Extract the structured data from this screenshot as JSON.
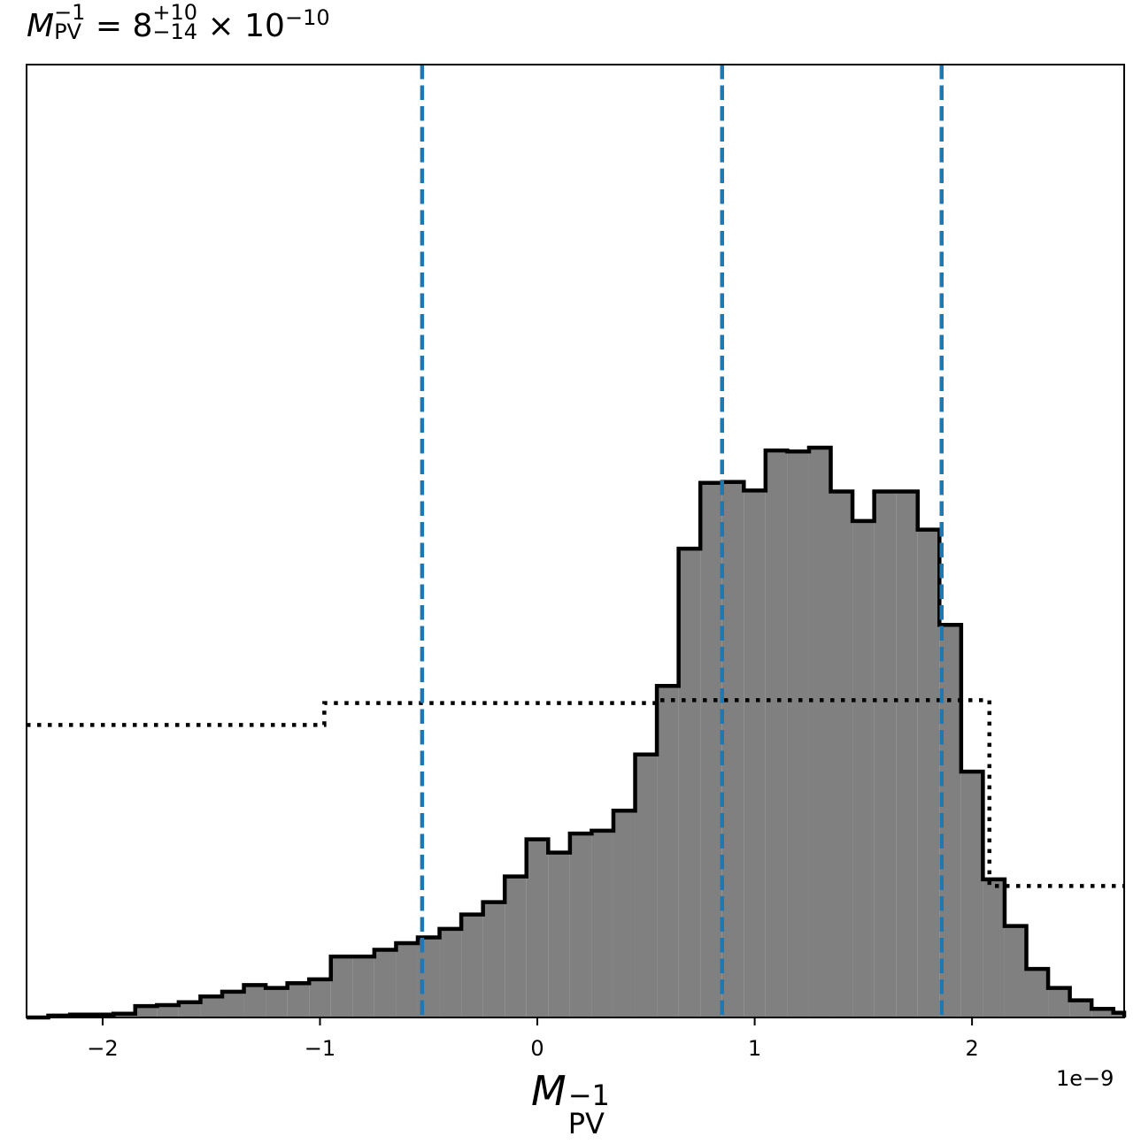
{
  "title": {
    "symbol": "M",
    "symbol_sup": "−1",
    "symbol_sub": "PV",
    "equals": "= 8",
    "value_sup": "+10",
    "value_sub": "−14",
    "times": "× 10",
    "exp": "−10"
  },
  "xlabel": {
    "symbol": "M",
    "sup": "−1",
    "sub": "PV"
  },
  "offset_text": "1e−9",
  "chart_data": {
    "type": "histogram",
    "xlim": [
      -2.35,
      2.7
    ],
    "xscale_factor": "1e-9",
    "xticks": [
      -2,
      -1,
      0,
      1,
      2
    ],
    "xtick_labels": [
      "−2",
      "−1",
      "0",
      "1",
      "2"
    ],
    "y_ticks_shown": false,
    "histogram": {
      "bin_edges": [
        -2.35,
        -2.25,
        -2.15,
        -2.05,
        -1.95,
        -1.85,
        -1.75,
        -1.65,
        -1.55,
        -1.45,
        -1.35,
        -1.25,
        -1.15,
        -1.05,
        -0.95,
        -0.85,
        -0.75,
        -0.65,
        -0.55,
        -0.45,
        -0.35,
        -0.25,
        -0.15,
        -0.05,
        0.05,
        0.15,
        0.25,
        0.35,
        0.45,
        0.55,
        0.65,
        0.75,
        0.85,
        0.95,
        1.05,
        1.15,
        1.25,
        1.35,
        1.45,
        1.55,
        1.65,
        1.75,
        1.85,
        1.95,
        2.05,
        2.15,
        2.25,
        2.35,
        2.45,
        2.55,
        2.65,
        2.7
      ],
      "counts": [
        0.0,
        0.2,
        0.3,
        0.3,
        0.4,
        1.2,
        1.3,
        1.6,
        2.2,
        2.7,
        3.4,
        3.1,
        3.6,
        4.0,
        6.4,
        6.4,
        7.1,
        7.8,
        8.4,
        9.3,
        10.8,
        12.1,
        14.8,
        18.7,
        17.3,
        19.3,
        19.6,
        21.7,
        27.6,
        34.8,
        49.2,
        56.1,
        56.2,
        55.3,
        59.5,
        59.4,
        59.8,
        55.2,
        52.1,
        55.2,
        55.2,
        51.2,
        41.2,
        25.8,
        14.5,
        9.6,
        5.1,
        3.1,
        1.8,
        0.9,
        0.5
      ],
      "face_color": "#808080",
      "edge_color": "#000000"
    },
    "prior": {
      "x": [
        -2.35,
        -0.98,
        -0.98,
        0.55,
        0.55,
        2.08,
        2.08,
        2.7
      ],
      "y": [
        30.7,
        30.7,
        33.0,
        33.0,
        33.3,
        33.3,
        13.8,
        13.8
      ],
      "style": "dotted",
      "color": "#000000"
    },
    "vlines": {
      "values": [
        -0.53,
        0.85,
        1.86
      ],
      "style": "dashed",
      "color": "#1f77b4"
    },
    "ylim": [
      0,
      100
    ]
  }
}
